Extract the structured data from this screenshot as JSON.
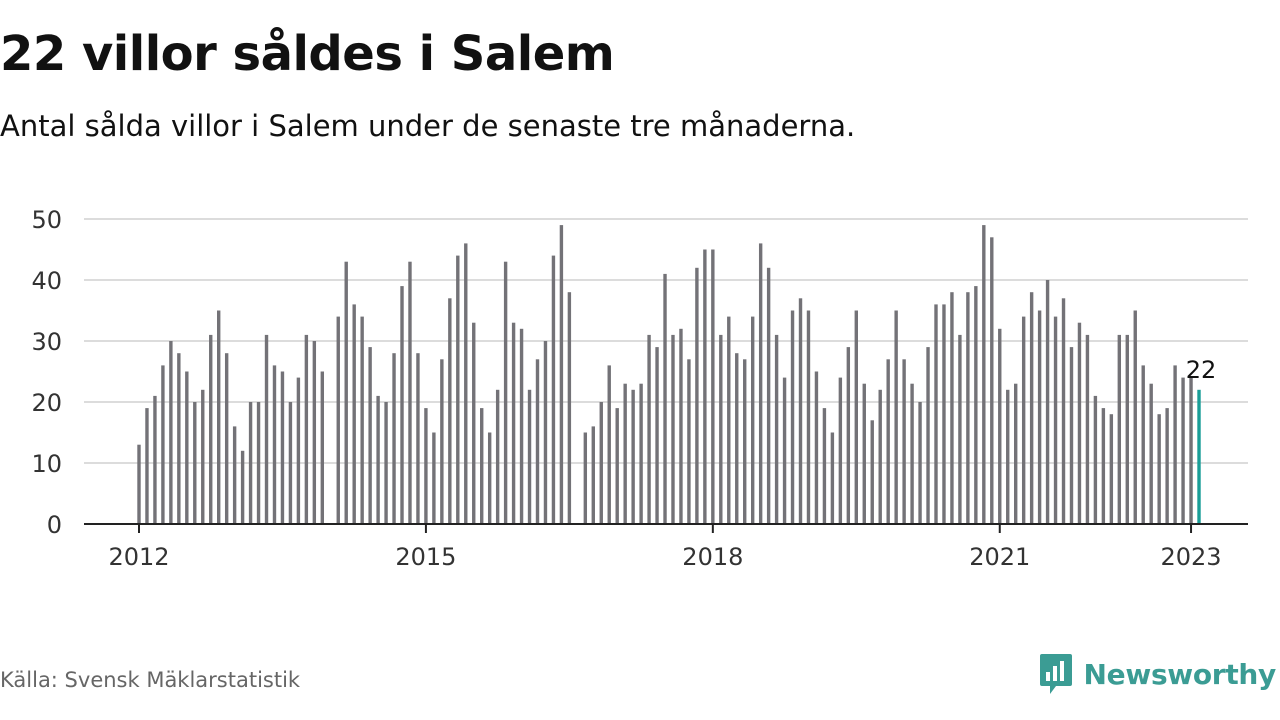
{
  "title": "22 villor såldes i Salem",
  "subtitle": "Antal sålda villor i Salem under de senaste tre månaderna.",
  "source": "Källa: Svensk Mäklarstatistik",
  "brand": {
    "name": "Newsworthy",
    "icon": "newsworthy-logo-icon"
  },
  "colors": {
    "bar": "#737277",
    "highlight": "#1a9e98",
    "grid": "#dcdcdc",
    "axis": "#222222"
  },
  "chart_data": {
    "type": "bar",
    "title": "22 villor såldes i Salem",
    "subtitle": "Antal sålda villor i Salem under de senaste tre månaderna.",
    "xlabel": "",
    "ylabel": "",
    "ylim": [
      0,
      50
    ],
    "yticks": [
      0,
      10,
      20,
      30,
      40,
      50
    ],
    "xticks": [
      {
        "label": "2012",
        "index": 0
      },
      {
        "label": "2015",
        "index": 36
      },
      {
        "label": "2018",
        "index": 72
      },
      {
        "label": "2021",
        "index": 108
      },
      {
        "label": "2023",
        "index": 132
      }
    ],
    "grid": true,
    "start": "2012-01",
    "frequency": "monthly",
    "highlight_label": "22",
    "values": [
      13,
      19,
      21,
      26,
      30,
      28,
      25,
      20,
      22,
      31,
      35,
      28,
      16,
      12,
      20,
      20,
      31,
      26,
      25,
      20,
      24,
      31,
      30,
      25,
      null,
      34,
      43,
      36,
      34,
      29,
      21,
      20,
      28,
      39,
      43,
      28,
      19,
      15,
      27,
      37,
      44,
      46,
      33,
      19,
      15,
      22,
      43,
      33,
      32,
      22,
      27,
      30,
      44,
      49,
      38,
      null,
      15,
      16,
      20,
      26,
      19,
      23,
      22,
      23,
      31,
      29,
      41,
      31,
      32,
      27,
      42,
      45,
      45,
      31,
      34,
      28,
      27,
      34,
      46,
      42,
      31,
      24,
      35,
      37,
      35,
      25,
      19,
      15,
      24,
      29,
      35,
      23,
      17,
      22,
      27,
      35,
      27,
      23,
      20,
      29,
      36,
      36,
      38,
      31,
      38,
      39,
      49,
      47,
      32,
      22,
      23,
      34,
      38,
      35,
      40,
      34,
      37,
      29,
      33,
      31,
      21,
      19,
      18,
      31,
      31,
      35,
      26,
      23,
      18,
      19,
      26,
      24,
      24,
      22
    ]
  }
}
